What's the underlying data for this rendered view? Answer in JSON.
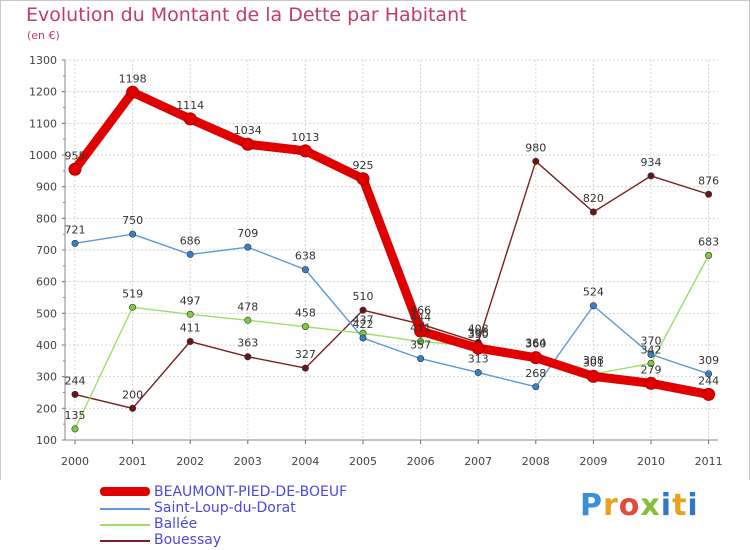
{
  "chart_data": {
    "type": "line",
    "title": "Evolution du Montant de la Dette par Habitant",
    "subtitle": "(en €)",
    "xlabel": "",
    "ylabel": "",
    "categories": [
      "2000",
      "2001",
      "2002",
      "2003",
      "2004",
      "2005",
      "2006",
      "2007",
      "2008",
      "2009",
      "2010",
      "2011"
    ],
    "ylim": [
      100,
      1300
    ],
    "yticks": [
      100,
      200,
      300,
      400,
      500,
      600,
      700,
      800,
      900,
      1000,
      1100,
      1200,
      1300
    ],
    "grid": true,
    "series": [
      {
        "name": "BEAUMONT-PIED-DE-BOEUF",
        "color": "#e00000",
        "marker_color": "#e00000",
        "values": [
          955,
          1198,
          1114,
          1034,
          1013,
          925,
          444,
          390,
          360,
          301,
          279,
          244
        ]
      },
      {
        "name": "Saint-Loup-du-Dorat",
        "color": "#5a9ad6",
        "marker_color": "#3a80c8",
        "values": [
          721,
          750,
          686,
          709,
          638,
          422,
          357,
          313,
          268,
          524,
          370,
          309
        ]
      },
      {
        "name": "Ballée",
        "color": "#9be06a",
        "marker_color": "#7acc3c",
        "values": [
          135,
          519,
          497,
          478,
          458,
          437,
          411,
          396,
          364,
          308,
          342,
          683
        ]
      },
      {
        "name": "Bouessay",
        "color": "#7a2020",
        "marker_color": "#6a1515",
        "values": [
          244,
          200,
          411,
          363,
          327,
          510,
          466,
          408,
          980,
          820,
          934,
          876
        ]
      }
    ]
  },
  "branding": {
    "logo_letters": [
      "P",
      "r",
      "o",
      "x",
      "i",
      "t",
      "i"
    ]
  }
}
